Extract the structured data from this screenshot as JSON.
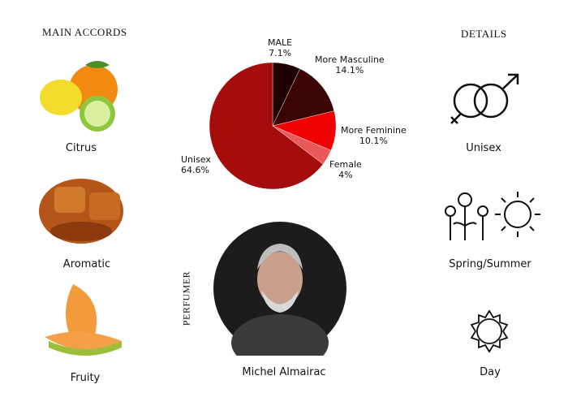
{
  "main_accords": {
    "title": "MAIN ACCORDS",
    "items": [
      {
        "label": "Citrus"
      },
      {
        "label": "Aromatic"
      },
      {
        "label": "Fruity"
      }
    ]
  },
  "details": {
    "title": "DETAILS",
    "items": [
      {
        "label": "Unisex",
        "icon": "gender-icon"
      },
      {
        "label": "Spring/Summer",
        "icon": "flowers-sun-icon"
      },
      {
        "label": "Day",
        "icon": "sun-icon"
      }
    ]
  },
  "perfumer": {
    "title": "PERFUMER",
    "name": "Michel Almairac"
  },
  "chart_data": {
    "type": "pie",
    "categories": [
      "MALE",
      "More Masculine",
      "More Feminine",
      "Female",
      "Unisex"
    ],
    "values": [
      7.1,
      14.1,
      10.1,
      4,
      64.6
    ],
    "value_labels": [
      "7.1%",
      "14.1%",
      "10.1%",
      "4%",
      "64.6%"
    ],
    "colors": [
      "#1e0000",
      "#3c0505",
      "#f00000",
      "#e85a5a",
      "#a50d0d"
    ]
  }
}
